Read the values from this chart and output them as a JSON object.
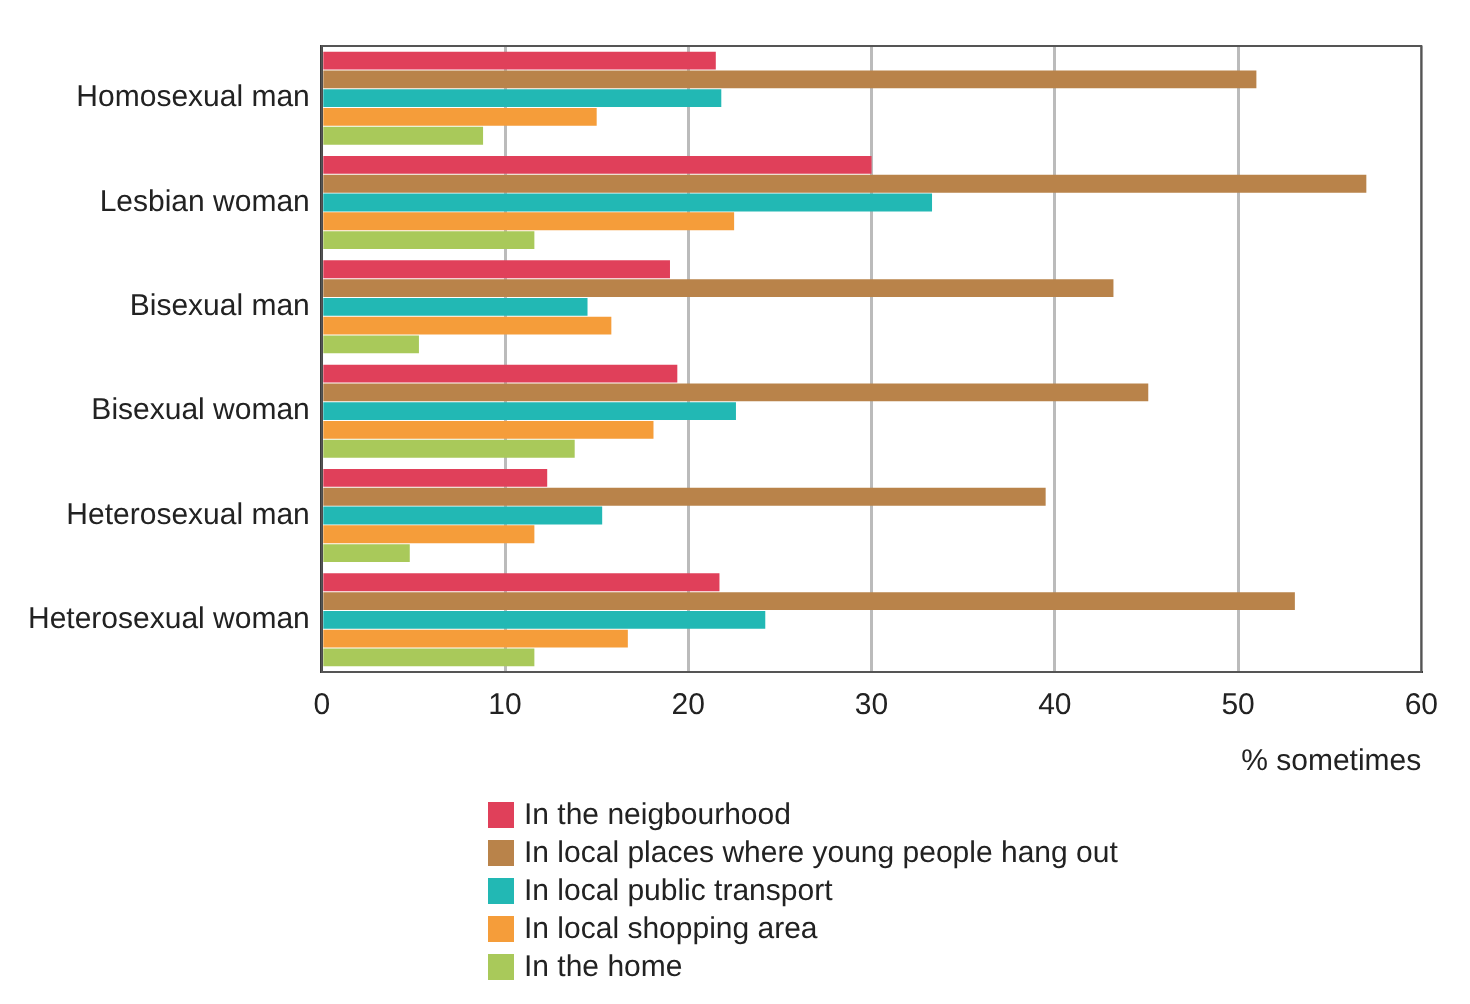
{
  "chart_data": {
    "type": "bar",
    "orientation": "horizontal",
    "xlabel": "% sometimes",
    "categories": [
      "Homosexual man",
      "Lesbian woman",
      "Bisexual man",
      "Bisexual woman",
      "Heterosexual man",
      "Heterosexual woman"
    ],
    "series": [
      {
        "name": "In the neigbourhood",
        "color": "#e0405a",
        "values": [
          21.5,
          30,
          19,
          19.4,
          12.3,
          21.7
        ]
      },
      {
        "name": "In local places where young people hang out",
        "color": "#b9834a",
        "values": [
          51,
          57,
          43.2,
          45.1,
          39.5,
          53.1
        ]
      },
      {
        "name": "In local public transport",
        "color": "#22b8b4",
        "values": [
          21.8,
          33.3,
          14.5,
          22.6,
          15.3,
          24.2
        ]
      },
      {
        "name": "In local shopping area",
        "color": "#f59d3a",
        "values": [
          15,
          22.5,
          15.8,
          18.1,
          11.6,
          16.7
        ]
      },
      {
        "name": "In the home",
        "color": "#a9c95a",
        "values": [
          8.8,
          11.6,
          5.3,
          13.8,
          4.8,
          11.6
        ]
      }
    ],
    "xlim": [
      0,
      60
    ],
    "xticks": [
      0,
      10,
      20,
      30,
      40,
      50,
      60
    ],
    "grid": "x",
    "legend": "bottom"
  }
}
